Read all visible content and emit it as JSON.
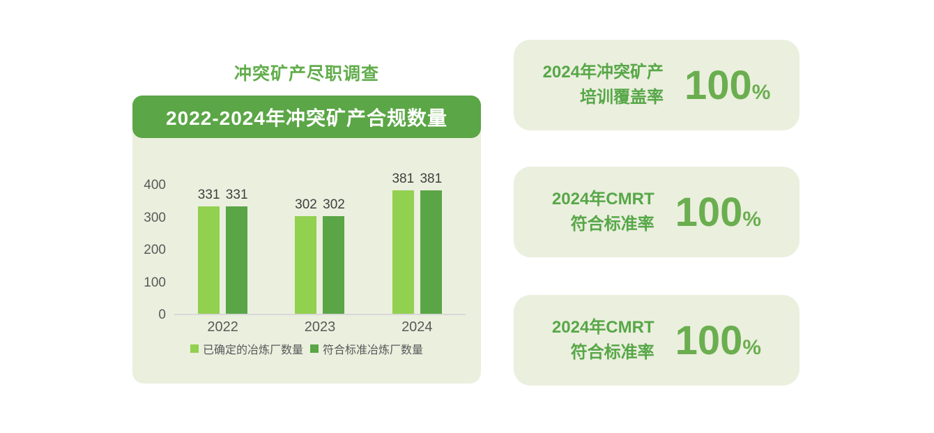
{
  "left": {
    "section_title": "冲突矿产尽职调查",
    "chart_header": "2022-2024年冲突矿产合规数量"
  },
  "chart_data": {
    "type": "bar",
    "title": "2022-2024年冲突矿产合规数量",
    "categories": [
      "2022",
      "2023",
      "2024"
    ],
    "series": [
      {
        "name": "已确定的冶炼厂数量",
        "color": "#92d050",
        "values": [
          331,
          302,
          381
        ]
      },
      {
        "name": "符合标准冶炼厂数量",
        "color": "#5aa546",
        "values": [
          331,
          302,
          381
        ]
      }
    ],
    "xlabel": "",
    "ylabel": "",
    "ylim": [
      0,
      400
    ],
    "yticks": [
      0,
      100,
      200,
      300,
      400
    ],
    "grid": false,
    "data_labels": true,
    "legend_position": "bottom"
  },
  "cards": [
    {
      "label_line1": "2024年冲突矿产",
      "label_line2": "培训覆盖率",
      "value": "100",
      "unit": "%"
    },
    {
      "label_line1": "2024年CMRT",
      "label_line2": "符合标准率",
      "value": "100",
      "unit": "%"
    },
    {
      "label_line1": "2024年CMRT",
      "label_line2": "符合标准率",
      "value": "100",
      "unit": "%"
    }
  ],
  "colors": {
    "panel_background": "#ebefde",
    "header_green": "#5ba646",
    "light_green": "#92d050",
    "dark_green": "#5aa546",
    "title_green": "#62ad4c",
    "stat_green": "#57a748",
    "axis_text": "#595959",
    "axis_line": "#d8d8d8"
  }
}
